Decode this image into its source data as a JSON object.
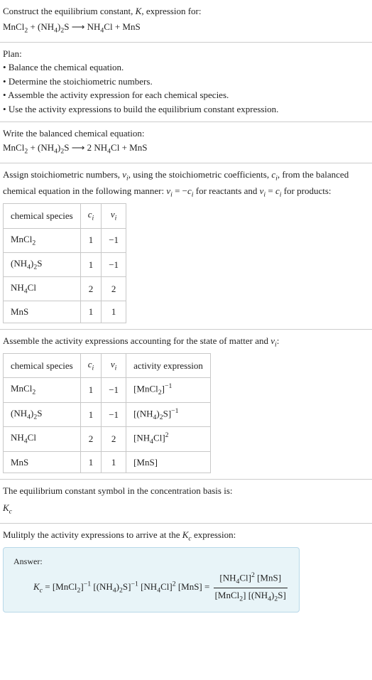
{
  "header": {
    "title_prefix": "Construct the equilibrium constant, ",
    "title_k": "K",
    "title_suffix": ", expression for:",
    "equation_html": "MnCl<span class=\"sub\">2</span> + (NH<span class=\"sub\">4</span>)<span class=\"sub\">2</span>S ⟶ NH<span class=\"sub\">4</span>Cl + MnS"
  },
  "plan": {
    "title": "Plan:",
    "items": [
      "Balance the chemical equation.",
      "Determine the stoichiometric numbers.",
      "Assemble the activity expression for each chemical species.",
      "Use the activity expressions to build the equilibrium constant expression."
    ]
  },
  "balanced": {
    "title": "Write the balanced chemical equation:",
    "equation_html": "MnCl<span class=\"sub\">2</span> + (NH<span class=\"sub\">4</span>)<span class=\"sub\">2</span>S ⟶ 2 NH<span class=\"sub\">4</span>Cl + MnS"
  },
  "stoich": {
    "intro_html": "Assign stoichiometric numbers, <span class=\"italic\">ν<span class=\"sub\">i</span></span>, using the stoichiometric coefficients, <span class=\"italic\">c<span class=\"sub\">i</span></span>, from the balanced chemical equation in the following manner: <span class=\"italic\">ν<span class=\"sub\">i</span></span> = −<span class=\"italic\">c<span class=\"sub\">i</span></span> for reactants and <span class=\"italic\">ν<span class=\"sub\">i</span></span> = <span class=\"italic\">c<span class=\"sub\">i</span></span> for products:",
    "table": {
      "headers": {
        "species": "chemical species",
        "ci_html": "<span class=\"italic\">c<span class=\"sub\">i</span></span>",
        "vi_html": "<span class=\"italic\">ν<span class=\"sub\">i</span></span>"
      },
      "rows": [
        {
          "species_html": "MnCl<span class=\"sub\">2</span>",
          "ci": "1",
          "vi": "−1"
        },
        {
          "species_html": "(NH<span class=\"sub\">4</span>)<span class=\"sub\">2</span>S",
          "ci": "1",
          "vi": "−1"
        },
        {
          "species_html": "NH<span class=\"sub\">4</span>Cl",
          "ci": "2",
          "vi": "2"
        },
        {
          "species_html": "MnS",
          "ci": "1",
          "vi": "1"
        }
      ]
    }
  },
  "activity": {
    "intro_html": "Assemble the activity expressions accounting for the state of matter and <span class=\"italic\">ν<span class=\"sub\">i</span></span>:",
    "table": {
      "headers": {
        "species": "chemical species",
        "ci_html": "<span class=\"italic\">c<span class=\"sub\">i</span></span>",
        "vi_html": "<span class=\"italic\">ν<span class=\"sub\">i</span></span>",
        "activity": "activity expression"
      },
      "rows": [
        {
          "species_html": "MnCl<span class=\"sub\">2</span>",
          "ci": "1",
          "vi": "−1",
          "expr_html": "[MnCl<span class=\"sub\">2</span>]<span class=\"sup\">−1</span>"
        },
        {
          "species_html": "(NH<span class=\"sub\">4</span>)<span class=\"sub\">2</span>S",
          "ci": "1",
          "vi": "−1",
          "expr_html": "[(NH<span class=\"sub\">4</span>)<span class=\"sub\">2</span>S]<span class=\"sup\">−1</span>"
        },
        {
          "species_html": "NH<span class=\"sub\">4</span>Cl",
          "ci": "2",
          "vi": "2",
          "expr_html": "[NH<span class=\"sub\">4</span>Cl]<span class=\"sup\">2</span>"
        },
        {
          "species_html": "MnS",
          "ci": "1",
          "vi": "1",
          "expr_html": "[MnS]"
        }
      ]
    }
  },
  "kc_symbol": {
    "intro": "The equilibrium constant symbol in the concentration basis is:",
    "symbol_html": "<span class=\"italic\">K<span class=\"sub\">c</span></span>"
  },
  "final": {
    "intro_html": "Mulitply the activity expressions to arrive at the <span class=\"italic\">K<span class=\"sub\">c</span></span> expression:"
  },
  "answer": {
    "label": "Answer:",
    "lhs_html": "<span class=\"italic\">K<span class=\"sub\">c</span></span> = [MnCl<span class=\"sub\">2</span>]<span class=\"sup\">−1</span> [(NH<span class=\"sub\">4</span>)<span class=\"sub\">2</span>S]<span class=\"sup\">−1</span> [NH<span class=\"sub\">4</span>Cl]<span class=\"sup\">2</span> [MnS] = ",
    "num_html": "[NH<span class=\"sub\">4</span>Cl]<span class=\"sup\">2</span> [MnS]",
    "den_html": "[MnCl<span class=\"sub\">2</span>] [(NH<span class=\"sub\">4</span>)<span class=\"sub\">2</span>S]"
  },
  "colors": {
    "divider": "#cccccc",
    "table_border": "#c8c8c8",
    "answer_bg": "#e8f4f8",
    "answer_border": "#b8d8e8",
    "text": "#222222"
  }
}
